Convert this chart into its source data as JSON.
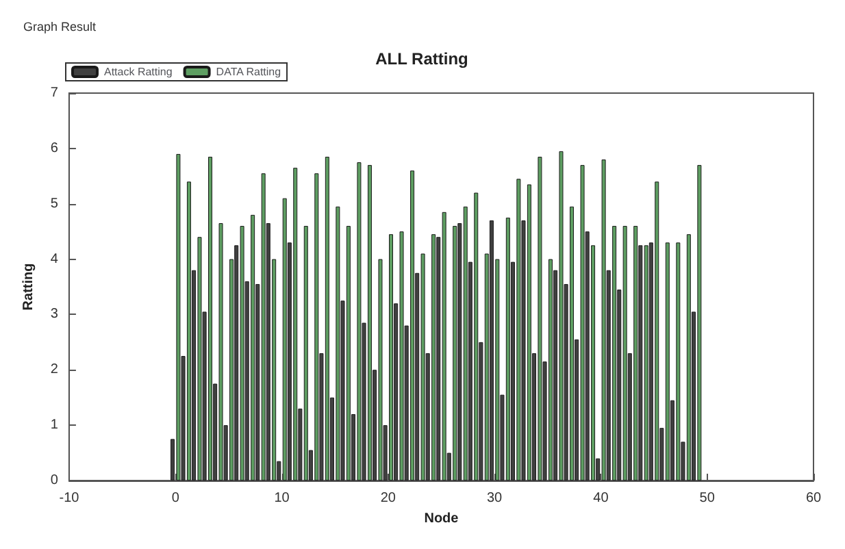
{
  "chart_data": {
    "type": "bar",
    "title": "ALL Ratting",
    "xlabel": "Node",
    "ylabel": "Ratting",
    "annotations": [
      "Graph Result"
    ],
    "x": [
      0,
      1,
      2,
      3,
      4,
      5,
      6,
      7,
      8,
      9,
      10,
      11,
      12,
      13,
      14,
      15,
      16,
      17,
      18,
      19,
      20,
      21,
      22,
      23,
      24,
      25,
      26,
      27,
      28,
      29,
      30,
      31,
      32,
      33,
      34,
      35,
      36,
      37,
      38,
      39,
      40,
      41,
      42,
      43,
      44,
      45,
      46,
      47,
      48,
      49
    ],
    "series": [
      {
        "name": "Attack Ratting",
        "color": "#404040",
        "values": [
          0.75,
          2.25,
          3.8,
          3.05,
          1.75,
          1.0,
          4.25,
          3.6,
          3.55,
          4.65,
          0.35,
          4.3,
          1.3,
          0.55,
          2.3,
          1.5,
          3.25,
          1.2,
          2.85,
          2.0,
          1.0,
          3.2,
          2.8,
          3.75,
          2.3,
          4.4,
          0.5,
          4.65,
          3.95,
          2.5,
          4.7,
          1.55,
          3.95,
          4.7,
          2.3,
          2.15,
          3.8,
          3.55,
          2.55,
          4.5,
          0.4,
          3.8,
          3.45,
          2.3,
          4.25,
          4.3,
          0.95,
          1.45,
          0.7,
          3.05
        ]
      },
      {
        "name": "DATA Ratting",
        "color": "#5e9e62",
        "values": [
          5.9,
          5.4,
          4.4,
          5.85,
          4.65,
          4.0,
          4.6,
          4.8,
          5.55,
          4.0,
          5.1,
          5.65,
          4.6,
          5.55,
          5.85,
          4.95,
          4.6,
          5.75,
          5.7,
          4.0,
          4.45,
          4.5,
          5.6,
          4.1,
          4.45,
          4.85,
          4.6,
          4.95,
          5.2,
          4.1,
          4.0,
          4.75,
          5.45,
          5.35,
          5.85,
          4.0,
          5.95,
          4.95,
          5.7,
          4.25,
          5.8,
          4.6,
          4.6,
          4.6,
          4.25,
          5.4,
          4.3,
          4.3,
          4.45,
          5.7
        ]
      }
    ],
    "xlim": [
      -10,
      60
    ],
    "xticks": [
      -10,
      0,
      10,
      20,
      30,
      40,
      50,
      60
    ],
    "ylim": [
      0,
      7
    ],
    "yticks": [
      0,
      1,
      2,
      3,
      4,
      5,
      6,
      7
    ],
    "grid": false,
    "legend": "top left"
  }
}
